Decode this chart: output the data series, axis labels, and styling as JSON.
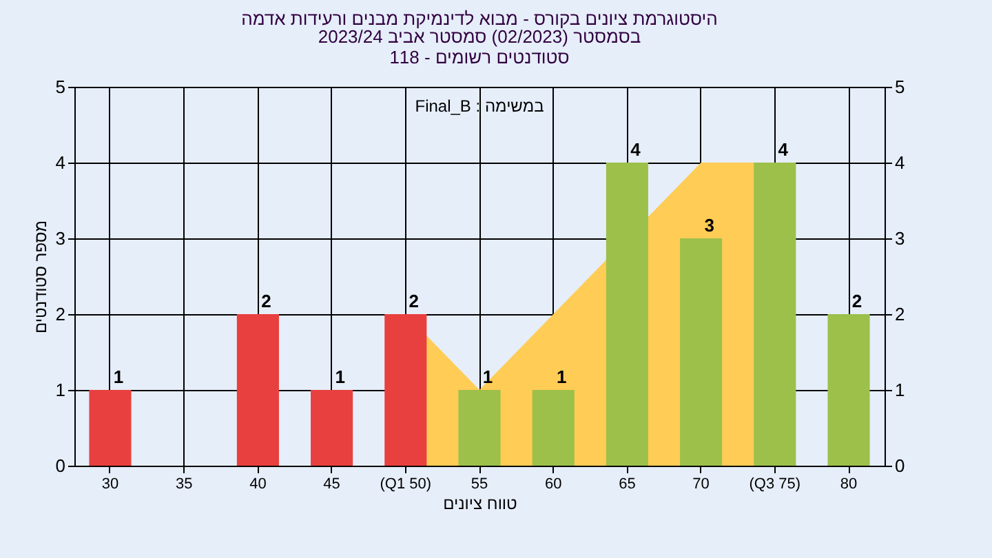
{
  "chart_data": {
    "type": "bar",
    "title": "היסטוגרמת ציונים בקורס - מבוא לדינמיקת מבנים ורעידות אדמה",
    "subtitle": "בסמסטר  (02/2023)  סמסטר אביב 2023/24\nסטודנטים רשומים - 118",
    "xlabel": "טווח ציונים",
    "ylabel": "מספר סטודנטים",
    "annotations": [
      "Final_B : במשימה"
    ],
    "categories": [
      "30",
      "35",
      "40",
      "45",
      "(Q1 50)",
      "55",
      "60",
      "65",
      "70",
      "(Q3 75)",
      "80"
    ],
    "series": [
      {
        "type": "area",
        "color": "#ffcc55",
        "values": [
          null,
          null,
          null,
          null,
          2,
          1,
          2,
          null,
          4,
          4,
          null
        ]
      },
      {
        "colors": [
          "#e8403e",
          "#e8403e",
          "#e8403e",
          "#e8403e",
          "#e8403e",
          "#9cc04a",
          "#9cc04a",
          "#9cc04a",
          "#9cc04a",
          "#9cc04a",
          "#9cc04a"
        ],
        "values": [
          1,
          0,
          2,
          1,
          2,
          1,
          1,
          4,
          3,
          4,
          2
        ],
        "value_labels": [
          "1",
          null,
          "2",
          "1",
          "2",
          "1",
          "1",
          "4",
          "3",
          "4",
          "2"
        ]
      }
    ],
    "ylim": [
      0,
      5
    ],
    "yticks": [
      0,
      1,
      2,
      3,
      4,
      5
    ],
    "y2lim": [
      0,
      5
    ],
    "y2ticks": [
      0,
      1,
      2,
      3,
      4,
      5
    ],
    "grid": true
  }
}
